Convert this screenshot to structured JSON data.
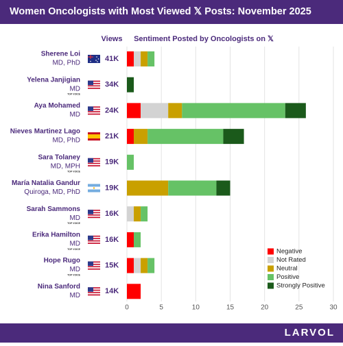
{
  "chart_data": {
    "type": "stacked-bar-horizontal",
    "title": "Women Oncologists with Most Viewed 𝕏 Posts: November 2025",
    "views_header": "Views",
    "sentiment_header": "Sentiment Posted by Oncologists on 𝕏",
    "categories": [
      "Sherene Loi",
      "Yelena Janjigian",
      "Aya Mohamed",
      "Nieves Martinez Lago",
      "Sara Tolaney",
      "María Natalia Gandur",
      "Sarah Sammons",
      "Erika Hamilton",
      "Hope Rugo",
      "Nina Sanford"
    ],
    "credentials": [
      "MD, PhD",
      "MD",
      "MD",
      "MD, PhD",
      "MD, MPH",
      "Quiroga, MD, PhD",
      "MD",
      "MD",
      "MD",
      "MD"
    ],
    "badges": [
      null,
      "TOP VOICE",
      null,
      null,
      "TOP VOICE",
      null,
      "TOP VOICE",
      "TOP VOICE",
      "TOP VOICE",
      null
    ],
    "views": [
      "41K",
      "34K",
      "24K",
      "21K",
      "19K",
      "19K",
      "16K",
      "16K",
      "15K",
      "14K"
    ],
    "series": [
      {
        "name": "Negative",
        "color": "#ff0000",
        "values": [
          1,
          0,
          2,
          1,
          0,
          0,
          0,
          1,
          1,
          2
        ]
      },
      {
        "name": "Not Rated",
        "color": "#d3d3d3",
        "values": [
          1,
          0,
          4,
          0,
          0,
          0,
          1,
          0,
          1,
          0
        ]
      },
      {
        "name": "Neutral",
        "color": "#c9a000",
        "values": [
          1,
          0,
          2,
          2,
          0,
          6,
          1,
          0,
          1,
          0
        ]
      },
      {
        "name": "Positive",
        "color": "#66c266",
        "values": [
          1,
          0,
          15,
          11,
          1,
          7,
          1,
          1,
          1,
          0
        ]
      },
      {
        "name": "Strongly Positive",
        "color": "#1b5a1b",
        "values": [
          0,
          1,
          3,
          3,
          0,
          2,
          0,
          0,
          0,
          0
        ]
      }
    ],
    "xlim": [
      0,
      30
    ],
    "xticks": [
      0,
      5,
      10,
      15,
      20,
      25,
      30
    ],
    "grid": true,
    "legend": "lower right",
    "footer": "LARVOL"
  }
}
